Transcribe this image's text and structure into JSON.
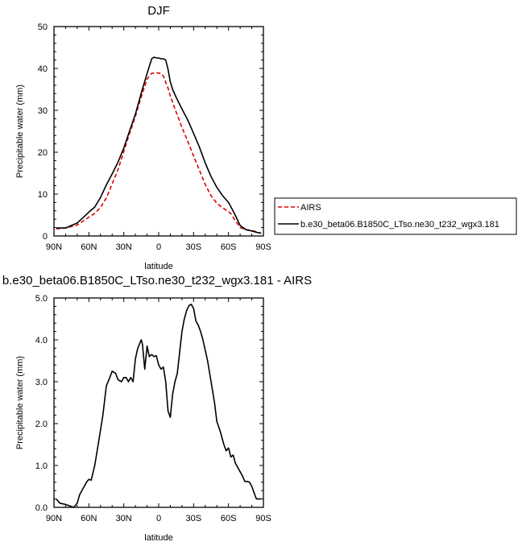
{
  "chart_data": [
    {
      "type": "line",
      "title": "DJF",
      "xlabel": "latitude",
      "ylabel": "Precipitable water (mm)",
      "xlim": [
        90,
        -90
      ],
      "ylim": [
        0,
        50
      ],
      "x_ticks": [
        90,
        60,
        30,
        0,
        -30,
        -60,
        -90
      ],
      "x_tick_labels": [
        "90N",
        "60N",
        "30N",
        "0",
        "30S",
        "60S",
        "90S"
      ],
      "y_ticks": [
        0,
        10,
        20,
        30,
        40,
        50
      ],
      "y_tick_labels": [
        "0",
        "10",
        "20",
        "30",
        "40",
        "50"
      ],
      "legend_position": "right, outside plot",
      "series": [
        {
          "name": "AIRS",
          "color": "#dd0000",
          "dashed": true,
          "x": [
            88,
            80,
            70,
            60,
            55,
            50,
            45,
            40,
            35,
            30,
            25,
            20,
            15,
            10,
            6,
            3,
            1,
            0,
            -2,
            -4,
            -6,
            -8,
            -10,
            -15,
            -20,
            -25,
            -30,
            -35,
            -40,
            -45,
            -50,
            -55,
            -60,
            -62,
            -65,
            -70,
            -75,
            -80,
            -85,
            -88
          ],
          "values": [
            1.7,
            1.9,
            2.6,
            4.5,
            5.4,
            6.8,
            9.1,
            12.4,
            15.8,
            20.2,
            24.5,
            28.6,
            33.2,
            37.5,
            38.8,
            39.0,
            38.9,
            38.9,
            38.8,
            38.2,
            36.7,
            35.3,
            33.4,
            29.6,
            25.9,
            22.6,
            19.1,
            15.7,
            12.3,
            9.6,
            7.8,
            6.7,
            5.8,
            5.3,
            4.0,
            2.0,
            1.5,
            1.3,
            0.9,
            0.6
          ]
        },
        {
          "name": "b.e30_beta06.B1850C_LTso.ne30_t232_wgx3.181",
          "color": "#000000",
          "dashed": false,
          "x": [
            88,
            80,
            70,
            60,
            55,
            50,
            45,
            40,
            35,
            30,
            25,
            20,
            15,
            10,
            6,
            4,
            2,
            0,
            -2,
            -4,
            -6,
            -8,
            -10,
            -12,
            -15,
            -20,
            -25,
            -30,
            -35,
            -40,
            -45,
            -50,
            -55,
            -60,
            -65,
            -70,
            -75,
            -80,
            -85,
            -88
          ],
          "values": [
            1.9,
            1.9,
            3.1,
            5.7,
            6.9,
            9.2,
            12.2,
            14.8,
            17.6,
            21.0,
            25.1,
            29.1,
            34.1,
            38.8,
            42.3,
            42.7,
            42.5,
            42.5,
            42.3,
            42.3,
            42.0,
            39.8,
            36.8,
            35.0,
            33.1,
            30.3,
            27.7,
            24.5,
            21.2,
            17.4,
            14.2,
            11.6,
            9.6,
            8.0,
            5.4,
            2.5,
            1.5,
            1.2,
            0.8,
            0.7
          ]
        }
      ]
    },
    {
      "type": "line",
      "title": "b.e30_beta06.B1850C_LTso.ne30_t232_wgx3.181 - AIRS",
      "xlabel": "latitude",
      "ylabel": "Precipitable water (mm)",
      "xlim": [
        90,
        -90
      ],
      "ylim": [
        0,
        5
      ],
      "x_ticks": [
        90,
        60,
        30,
        0,
        -30,
        -60,
        -90
      ],
      "x_tick_labels": [
        "90N",
        "60N",
        "30N",
        "0",
        "30S",
        "60S",
        "90S"
      ],
      "y_ticks": [
        0,
        1,
        2,
        3,
        4,
        5
      ],
      "y_tick_labels": [
        "0.0",
        "1.0",
        "2.0",
        "3.0",
        "4.0",
        "5.0"
      ],
      "series": [
        {
          "color": "#000000",
          "dashed": false,
          "x": [
            88,
            85,
            80,
            75,
            73,
            70,
            68,
            65,
            62,
            60,
            58,
            55,
            52,
            48,
            45,
            42,
            40,
            37,
            35,
            32,
            30,
            28,
            26,
            24,
            22,
            20,
            18,
            15,
            14,
            12,
            10,
            8,
            6,
            4,
            2,
            0,
            -2,
            -4,
            -6,
            -8,
            -10,
            -12,
            -14,
            -16,
            -18,
            -20,
            -22,
            -24,
            -26,
            -28,
            -30,
            -32,
            -34,
            -36,
            -38,
            -40,
            -42,
            -45,
            -48,
            -50,
            -53,
            -56,
            -58,
            -60,
            -62,
            -64,
            -66,
            -68,
            -70,
            -72,
            -74,
            -76,
            -78,
            -80,
            -82,
            -84,
            -86,
            -88
          ],
          "values": [
            0.2,
            0.1,
            0.07,
            0.02,
            0.0,
            0.1,
            0.3,
            0.45,
            0.6,
            0.67,
            0.65,
            1.0,
            1.5,
            2.2,
            2.9,
            3.1,
            3.25,
            3.2,
            3.05,
            3.0,
            3.1,
            3.1,
            3.0,
            3.1,
            3.0,
            3.55,
            3.8,
            4.0,
            3.9,
            3.3,
            3.85,
            3.6,
            3.65,
            3.6,
            3.62,
            3.4,
            3.3,
            3.35,
            3.0,
            2.3,
            2.15,
            2.7,
            3.0,
            3.2,
            3.7,
            4.2,
            4.5,
            4.7,
            4.82,
            4.85,
            4.75,
            4.45,
            4.35,
            4.2,
            4.0,
            3.75,
            3.5,
            3.0,
            2.5,
            2.05,
            1.8,
            1.5,
            1.35,
            1.42,
            1.2,
            1.25,
            1.05,
            0.95,
            0.85,
            0.75,
            0.62,
            0.62,
            0.6,
            0.5,
            0.35,
            0.2,
            0.2,
            0.2
          ]
        }
      ]
    }
  ]
}
